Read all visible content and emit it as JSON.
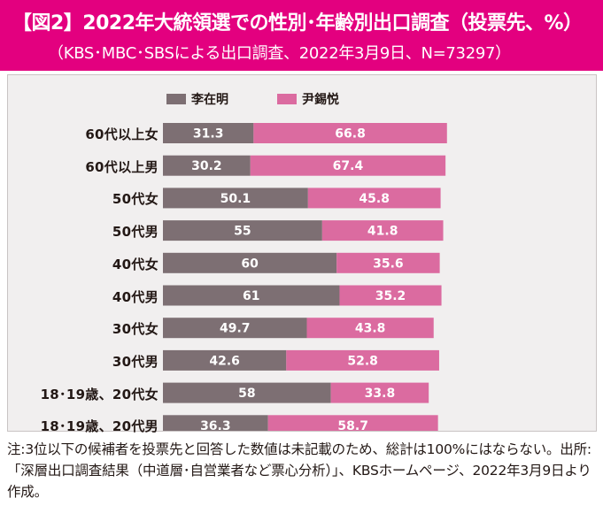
{
  "header": {
    "title": "【図2】2022年大統領選での性別･年齢別出口調査（投票先、%）",
    "subtitle": "（KBS･MBC･SBSによる出口調査、2022年3月9日、N=73297）"
  },
  "colors": {
    "header_bg": "#e3007f",
    "lee": "#7d6f73",
    "yoon": "#db6ba0",
    "plot_bg": "#f1efef"
  },
  "chart_data": {
    "type": "bar",
    "orientation": "horizontal",
    "stacked": true,
    "categories": [
      "60代以上女",
      "60代以上男",
      "50代女",
      "50代男",
      "40代女",
      "40代男",
      "30代女",
      "30代男",
      "18･19歳、20代女",
      "18･19歳、20代男"
    ],
    "series": [
      {
        "name": "李在明",
        "values": [
          "31.3",
          "30.2",
          "50.1",
          "55",
          "60",
          "61",
          "49.7",
          "42.6",
          "58",
          "36.3"
        ]
      },
      {
        "name": "尹錫悦",
        "values": [
          "66.8",
          "67.4",
          "45.8",
          "41.8",
          "35.6",
          "35.2",
          "43.8",
          "52.8",
          "33.8",
          "58.7"
        ]
      }
    ],
    "xlim": [
      0,
      100
    ],
    "legend_position": "top",
    "data_labels": true
  },
  "footnote": "注:3位以下の候補者を投票先と回答した数値は未記載のため、総計は100%にはならない。出所:「深層出口調査結果（中道層･自営業者など票心分析）」、KBSホームページ、2022年3月9日より作成。"
}
